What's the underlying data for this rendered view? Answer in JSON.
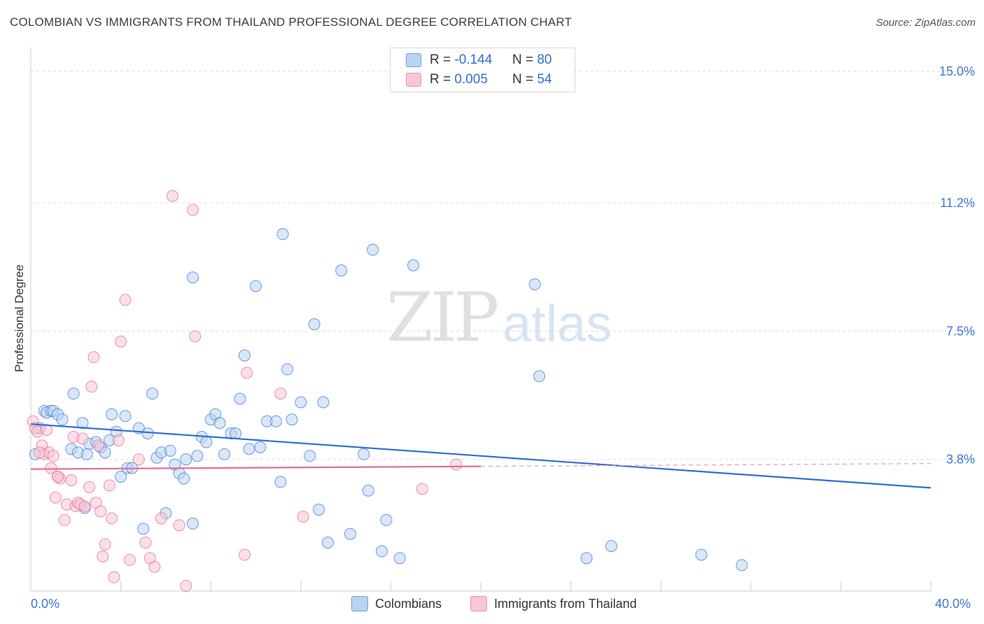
{
  "header": {
    "title": "COLOMBIAN VS IMMIGRANTS FROM THAILAND PROFESSIONAL DEGREE CORRELATION CHART",
    "source": "Source: ZipAtlas.com"
  },
  "legend_top": {
    "rows": [
      {
        "r_label": "R =",
        "r_value": "-0.144",
        "n_label": "N =",
        "n_value": "80"
      },
      {
        "r_label": "R =",
        "r_value": "0.005",
        "n_label": "N =",
        "n_value": "54"
      }
    ]
  },
  "watermark": {
    "zip": "ZIP",
    "atlas": "atlas"
  },
  "colors": {
    "blue": "#3a7bd5",
    "blue_fill": "#b9d3f3",
    "pink": "#e46b96",
    "pink_fill": "#f8c6d6",
    "accent_text": "#3c78cf"
  },
  "chart_data": {
    "type": "scatter",
    "title": "COLOMBIAN VS IMMIGRANTS FROM THAILAND PROFESSIONAL DEGREE CORRELATION CHART",
    "xlabel": "",
    "ylabel": "Professional Degree",
    "xlim": [
      0,
      40
    ],
    "ylim": [
      0,
      15.5
    ],
    "x_tick_labels": [
      "0.0%",
      "40.0%"
    ],
    "y_ticks": [
      3.8,
      7.5,
      11.2,
      15.0
    ],
    "y_tick_labels": [
      "3.8%",
      "7.5%",
      "11.2%",
      "15.0%"
    ],
    "grid": true,
    "legend_position": "top-center",
    "series": [
      {
        "name": "Colombians",
        "color": "#3a7bd5",
        "r": -0.144,
        "n": 80,
        "trend": {
          "x": [
            0,
            40
          ],
          "y": [
            4.82,
            2.98
          ]
        },
        "points": [
          [
            0.2,
            3.95
          ],
          [
            0.4,
            4.7
          ],
          [
            0.6,
            5.2
          ],
          [
            0.7,
            5.15
          ],
          [
            0.9,
            5.2
          ],
          [
            1.0,
            5.2
          ],
          [
            1.2,
            5.1
          ],
          [
            1.4,
            4.95
          ],
          [
            1.8,
            4.1
          ],
          [
            1.9,
            5.7
          ],
          [
            2.1,
            4.0
          ],
          [
            2.3,
            4.85
          ],
          [
            2.5,
            3.95
          ],
          [
            2.6,
            4.25
          ],
          [
            2.9,
            4.3
          ],
          [
            3.1,
            4.15
          ],
          [
            3.3,
            4.0
          ],
          [
            3.5,
            4.35
          ],
          [
            3.6,
            5.1
          ],
          [
            3.8,
            4.6
          ],
          [
            4.0,
            3.3
          ],
          [
            4.2,
            5.05
          ],
          [
            4.3,
            3.55
          ],
          [
            4.5,
            3.55
          ],
          [
            4.8,
            4.7
          ],
          [
            5.0,
            1.8
          ],
          [
            5.2,
            4.55
          ],
          [
            5.4,
            5.7
          ],
          [
            5.6,
            3.85
          ],
          [
            5.8,
            4.0
          ],
          [
            6.0,
            2.25
          ],
          [
            6.2,
            4.05
          ],
          [
            6.4,
            3.65
          ],
          [
            6.6,
            3.4
          ],
          [
            6.8,
            3.25
          ],
          [
            6.9,
            3.8
          ],
          [
            7.2,
            9.05
          ],
          [
            7.4,
            3.9
          ],
          [
            7.6,
            4.45
          ],
          [
            7.8,
            4.3
          ],
          [
            8.0,
            4.95
          ],
          [
            8.2,
            5.1
          ],
          [
            8.4,
            4.85
          ],
          [
            8.6,
            3.95
          ],
          [
            8.9,
            4.55
          ],
          [
            9.1,
            4.55
          ],
          [
            9.3,
            5.55
          ],
          [
            9.5,
            6.8
          ],
          [
            9.7,
            4.1
          ],
          [
            10.0,
            8.8
          ],
          [
            10.2,
            4.15
          ],
          [
            10.5,
            4.9
          ],
          [
            10.9,
            4.9
          ],
          [
            11.1,
            3.15
          ],
          [
            11.2,
            10.3
          ],
          [
            11.4,
            6.4
          ],
          [
            11.6,
            4.95
          ],
          [
            12.0,
            5.45
          ],
          [
            12.4,
            3.9
          ],
          [
            12.6,
            7.7
          ],
          [
            12.8,
            2.35
          ],
          [
            13.0,
            5.45
          ],
          [
            13.2,
            1.4
          ],
          [
            13.8,
            9.25
          ],
          [
            14.2,
            1.65
          ],
          [
            14.8,
            3.95
          ],
          [
            15.0,
            2.9
          ],
          [
            15.2,
            9.85
          ],
          [
            15.6,
            1.15
          ],
          [
            15.8,
            2.05
          ],
          [
            16.4,
            0.95
          ],
          [
            17.0,
            9.4
          ],
          [
            22.4,
            8.85
          ],
          [
            22.6,
            6.2
          ],
          [
            24.7,
            0.95
          ],
          [
            25.8,
            1.3
          ],
          [
            29.8,
            1.05
          ],
          [
            31.6,
            0.75
          ],
          [
            2.4,
            2.4
          ],
          [
            7.2,
            1.95
          ]
        ]
      },
      {
        "name": "Immigrants from Thailand",
        "color": "#e46b96",
        "r": 0.005,
        "n": 54,
        "trend": {
          "x": [
            0,
            20
          ],
          "y": [
            3.52,
            3.6
          ]
        },
        "points": [
          [
            0.1,
            4.9
          ],
          [
            0.2,
            4.7
          ],
          [
            0.3,
            4.6
          ],
          [
            0.5,
            4.2
          ],
          [
            0.6,
            3.95
          ],
          [
            0.8,
            4.0
          ],
          [
            0.9,
            3.55
          ],
          [
            1.0,
            3.9
          ],
          [
            1.1,
            2.7
          ],
          [
            1.2,
            3.3
          ],
          [
            1.3,
            3.25
          ],
          [
            1.5,
            2.05
          ],
          [
            1.6,
            2.5
          ],
          [
            1.8,
            3.2
          ],
          [
            1.9,
            4.45
          ],
          [
            2.0,
            2.45
          ],
          [
            2.1,
            2.55
          ],
          [
            2.2,
            2.5
          ],
          [
            2.4,
            2.45
          ],
          [
            2.6,
            3.0
          ],
          [
            2.7,
            5.9
          ],
          [
            2.8,
            6.75
          ],
          [
            2.9,
            2.55
          ],
          [
            3.0,
            4.2
          ],
          [
            3.1,
            2.3
          ],
          [
            3.2,
            1.0
          ],
          [
            3.3,
            1.35
          ],
          [
            3.5,
            3.05
          ],
          [
            3.6,
            2.1
          ],
          [
            3.7,
            0.4
          ],
          [
            3.9,
            4.35
          ],
          [
            4.0,
            7.2
          ],
          [
            4.2,
            8.4
          ],
          [
            4.4,
            0.9
          ],
          [
            4.8,
            3.8
          ],
          [
            5.1,
            1.4
          ],
          [
            5.3,
            0.95
          ],
          [
            5.5,
            0.7
          ],
          [
            5.8,
            2.1
          ],
          [
            6.3,
            11.4
          ],
          [
            6.6,
            1.9
          ],
          [
            6.9,
            0.15
          ],
          [
            7.2,
            11.0
          ],
          [
            7.3,
            7.35
          ],
          [
            9.5,
            1.05
          ],
          [
            9.6,
            6.3
          ],
          [
            11.1,
            5.7
          ],
          [
            12.1,
            2.15
          ],
          [
            17.4,
            2.95
          ],
          [
            18.9,
            3.65
          ],
          [
            1.2,
            3.3
          ],
          [
            0.7,
            4.65
          ],
          [
            2.3,
            4.4
          ],
          [
            0.4,
            4.0
          ]
        ]
      }
    ]
  },
  "bottom_legend": {
    "items": [
      "Colombians",
      "Immigrants from Thailand"
    ]
  },
  "axes": {
    "x_min_label": "0.0%",
    "x_max_label": "40.0%",
    "y_axis_title": "Professional Degree"
  }
}
